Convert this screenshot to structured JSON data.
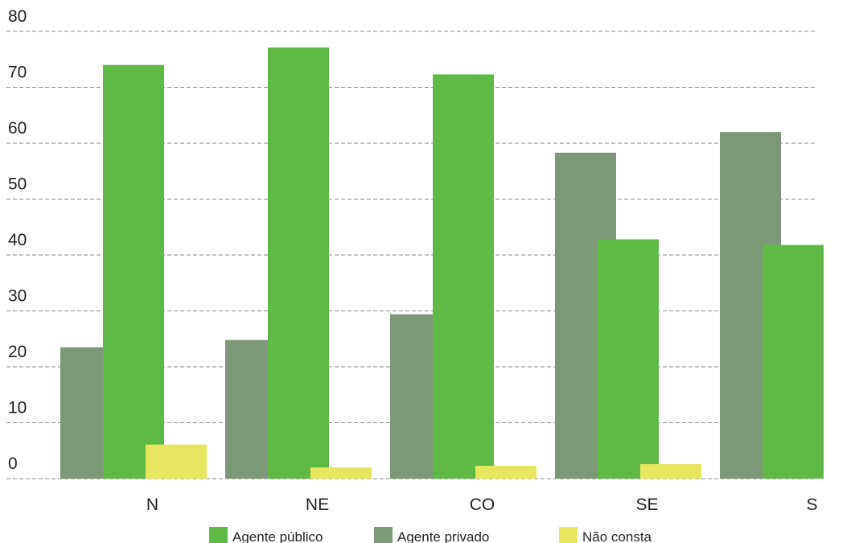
{
  "chart_data": {
    "type": "bar",
    "title": "",
    "xlabel": "",
    "ylabel": "",
    "ylim": [
      0,
      80
    ],
    "yticks": [
      0,
      10,
      20,
      30,
      40,
      50,
      60,
      70,
      80
    ],
    "grid": true,
    "legend_position": "bottom",
    "categories": [
      "N",
      "NE",
      "CO",
      "SE",
      "S"
    ],
    "series": [
      {
        "name": "Agente privado",
        "color": "#7d9878",
        "values": [
          23.5,
          24.8,
          29.4,
          58.3,
          62.0
        ]
      },
      {
        "name": "Agente público",
        "color": "#5fba45",
        "values": [
          74.0,
          77.1,
          72.3,
          42.8,
          41.8
        ]
      },
      {
        "name": "Não consta",
        "color": "#e6e660",
        "values": [
          6.1,
          2.0,
          2.3,
          2.6,
          null
        ]
      }
    ],
    "legend_order": [
      "Agente público",
      "Agente privado",
      "Não consta"
    ]
  }
}
